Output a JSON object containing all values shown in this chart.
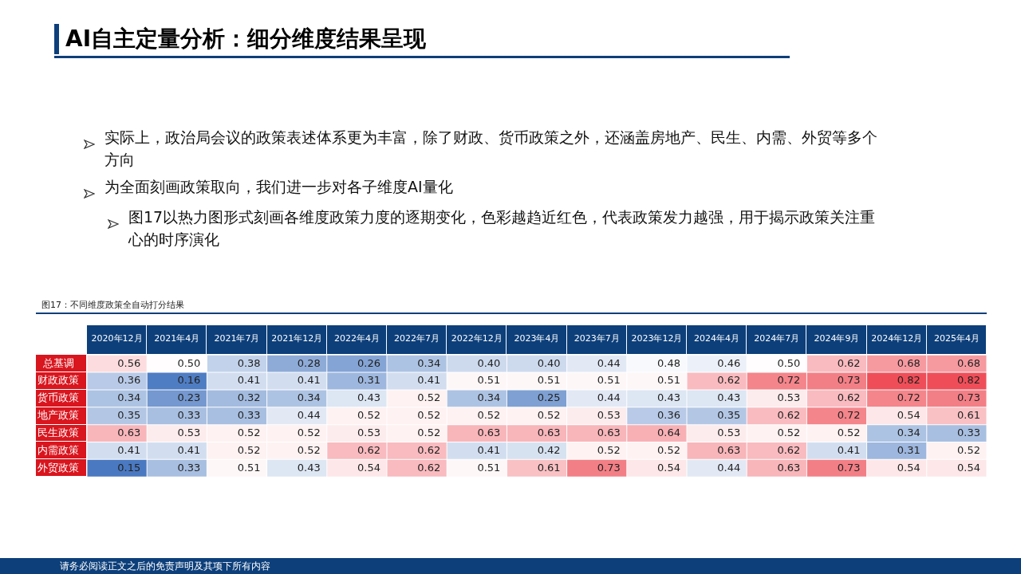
{
  "chart_data": {
    "type": "heatmap",
    "title": "AI自主定量分析：细分维度结果呈现",
    "subtitle": "图17：不同维度政策全自动打分结果",
    "annotations": [
      "实际上，政治局会议的政策表述体系更为丰富，除了财政、货币政策之外，还涵盖房地产、民生、内需、外贸等多个方向",
      "为全面刻画政策取向，我们进一步对各子维度AI量化",
      "图17以热力图形式刻画各维度政策力度的逐期变化，色彩越趋近红色，代表政策发力越强，用于揭示政策关注重心的时序演化",
      "请务必阅读正文之后的免责声明及其项下所有内容"
    ],
    "categories": [
      "2020年12月",
      "2021年4月",
      "2021年7月",
      "2021年12月",
      "2022年4月",
      "2022年7月",
      "2022年12月",
      "2023年4月",
      "2023年7月",
      "2023年12月",
      "2024年4月",
      "2024年7月",
      "2024年9月",
      "2024年12月",
      "2025年4月"
    ],
    "y_categories": [
      "总基调",
      "财政政策",
      "货币政策",
      "地产政策",
      "民生政策",
      "内需政策",
      "外贸政策"
    ],
    "cells": [
      [
        0.56,
        0.5,
        0.38,
        0.28,
        0.26,
        0.34,
        0.4,
        0.4,
        0.44,
        0.48,
        0.46,
        0.5,
        0.62,
        0.68,
        0.68
      ],
      [
        0.36,
        0.16,
        0.41,
        0.41,
        0.31,
        0.41,
        0.51,
        0.51,
        0.51,
        0.51,
        0.62,
        0.72,
        0.73,
        0.82,
        0.82
      ],
      [
        0.34,
        0.23,
        0.32,
        0.34,
        0.43,
        0.52,
        0.34,
        0.25,
        0.44,
        0.43,
        0.43,
        0.53,
        0.62,
        0.72,
        0.73
      ],
      [
        0.35,
        0.33,
        0.33,
        0.44,
        0.52,
        0.52,
        0.52,
        0.52,
        0.53,
        0.36,
        0.35,
        0.62,
        0.72,
        0.54,
        0.61
      ],
      [
        0.63,
        0.53,
        0.52,
        0.52,
        0.53,
        0.52,
        0.63,
        0.63,
        0.63,
        0.64,
        0.53,
        0.52,
        0.52,
        0.34,
        0.33
      ],
      [
        0.41,
        0.41,
        0.52,
        0.52,
        0.62,
        0.62,
        0.41,
        0.42,
        0.52,
        0.52,
        0.63,
        0.62,
        0.41,
        0.31,
        0.52
      ],
      [
        0.15,
        0.33,
        0.51,
        0.43,
        0.54,
        0.62,
        0.51,
        0.61,
        0.73,
        0.54,
        0.44,
        0.63,
        0.73,
        0.54,
        0.54
      ]
    ],
    "cell_labels": [
      [
        "0.56",
        "0.50",
        "0.38",
        "0.28",
        "0.26",
        "0.34",
        "0.40",
        "0.40",
        "0.44",
        "0.48",
        "0.46",
        "0.50",
        "0.62",
        "0.68",
        "0.68"
      ],
      [
        "0.36",
        "0.16",
        "0.41",
        "0.41",
        "0.31",
        "0.41",
        "0.51",
        "0.51",
        "0.51",
        "0.51",
        "0.62",
        "0.72",
        "0.73",
        "0.82",
        "0.82"
      ],
      [
        "0.34",
        "0.23",
        "0.32",
        "0.34",
        "0.43",
        "0.52",
        "0.34",
        "0.25",
        "0.44",
        "0.43",
        "0.43",
        "0.53",
        "0.62",
        "0.72",
        "0.73"
      ],
      [
        "0.35",
        "0.33",
        "0.33",
        "0.44",
        "0.52",
        "0.52",
        "0.52",
        "0.52",
        "0.53",
        "0.36",
        "0.35",
        "0.62",
        "0.72",
        "0.54",
        "0.61"
      ],
      [
        "0.63",
        "0.53",
        "0.52",
        "0.52",
        "0.53",
        "0.52",
        "0.63",
        "0.63",
        "0.63",
        "0.64",
        "0.53",
        "0.52",
        "0.52",
        "0.34",
        "0.33"
      ],
      [
        "0.41",
        "0.41",
        "0.52",
        "0.52",
        "0.62",
        "0.62",
        "0.41",
        "0.42",
        "0.52",
        "0.52",
        "0.63",
        "0.62",
        "0.41",
        "0.31",
        "0.52"
      ],
      [
        "0.15",
        "0.33",
        "0.51",
        "0.43",
        "0.54",
        "0.62",
        "0.51",
        "0.61",
        "0.73",
        "0.54",
        "0.44",
        "0.63",
        "0.73",
        "0.54",
        "0.54"
      ]
    ],
    "data_labels": true
  }
}
